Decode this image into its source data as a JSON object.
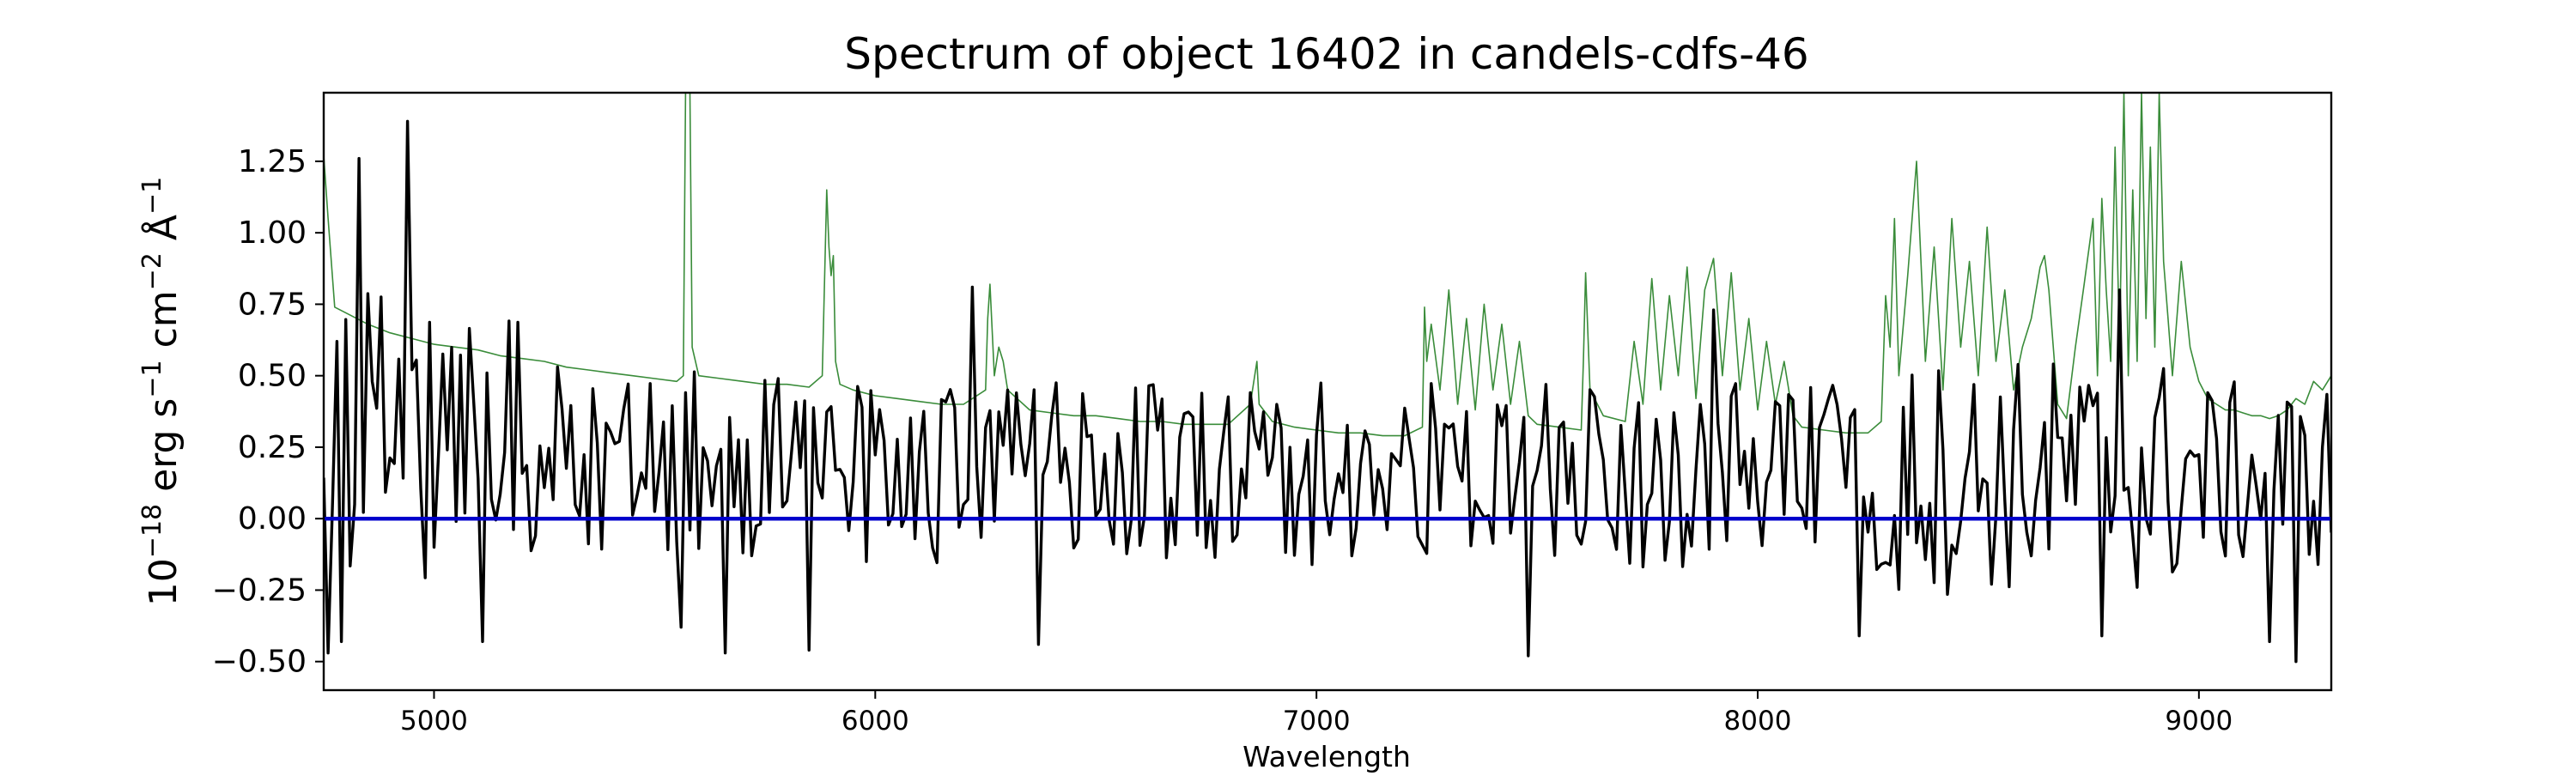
{
  "chart_data": {
    "type": "line",
    "title": "Spectrum of object 16402 in candels-cdfs-46",
    "xlabel": "Wavelength",
    "ylabel": "10^{-18} erg s^{-1} cm^{-2} Å^{-1}",
    "ylabel_parts": {
      "prefix": "10",
      "exp1": "−18",
      "unit1": " erg s",
      "exp2": "−1",
      "unit2": " cm",
      "exp3": "−2",
      "unit3": " Å",
      "exp4": "−1"
    },
    "xlim": [
      4750,
      9300
    ],
    "ylim": [
      -0.6,
      1.49
    ],
    "x_ticks": [
      5000,
      6000,
      7000,
      8000,
      9000
    ],
    "x_tick_labels": [
      "5000",
      "6000",
      "7000",
      "8000",
      "9000"
    ],
    "y_ticks": [
      -0.5,
      -0.25,
      0.0,
      0.25,
      0.5,
      0.75,
      1.0,
      1.25
    ],
    "y_tick_labels": [
      "−0.50",
      "−0.25",
      "0.00",
      "0.25",
      "0.50",
      "0.75",
      "1.00",
      "1.25"
    ],
    "grid": false,
    "series": [
      {
        "color": "#3a8c3a",
        "x": [
          4750,
          4760,
          4775,
          4800,
          4850,
          4900,
          4950,
          5000,
          5050,
          5100,
          5150,
          5200,
          5250,
          5300,
          5350,
          5400,
          5450,
          5500,
          5550,
          5565,
          5570,
          5575,
          5580,
          5585,
          5600,
          5650,
          5700,
          5750,
          5800,
          5850,
          5880,
          5890,
          5895,
          5900,
          5905,
          5910,
          5920,
          5950,
          6000,
          6050,
          6100,
          6150,
          6200,
          6250,
          6255,
          6260,
          6270,
          6280,
          6290,
          6300,
          6350,
          6400,
          6450,
          6500,
          6550,
          6600,
          6650,
          6700,
          6750,
          6800,
          6850,
          6860,
          6865,
          6870,
          6900,
          6950,
          7000,
          7050,
          7100,
          7150,
          7200,
          7240,
          7245,
          7250,
          7260,
          7280,
          7300,
          7320,
          7340,
          7360,
          7380,
          7400,
          7420,
          7440,
          7460,
          7480,
          7500,
          7550,
          7600,
          7605,
          7610,
          7620,
          7650,
          7700,
          7720,
          7740,
          7760,
          7780,
          7800,
          7820,
          7840,
          7860,
          7880,
          7900,
          7920,
          7940,
          7960,
          7980,
          8000,
          8020,
          8040,
          8060,
          8080,
          8100,
          8150,
          8200,
          8250,
          8280,
          8290,
          8300,
          8310,
          8320,
          8340,
          8360,
          8380,
          8400,
          8420,
          8440,
          8460,
          8480,
          8500,
          8520,
          8540,
          8560,
          8580,
          8600,
          8620,
          8640,
          8650,
          8660,
          8680,
          8700,
          8720,
          8740,
          8760,
          8770,
          8780,
          8790,
          8800,
          8810,
          8820,
          8830,
          8840,
          8850,
          8860,
          8870,
          8880,
          8890,
          8900,
          8910,
          8920,
          8930,
          8940,
          8960,
          8980,
          9000,
          9020,
          9040,
          9060,
          9080,
          9100,
          9120,
          9140,
          9160,
          9180,
          9200,
          9220,
          9240,
          9260,
          9280,
          9300
        ],
        "values": [
          1.27,
          1.05,
          0.74,
          0.72,
          0.68,
          0.65,
          0.63,
          0.61,
          0.6,
          0.59,
          0.57,
          0.56,
          0.55,
          0.53,
          0.52,
          0.51,
          0.5,
          0.49,
          0.48,
          0.5,
          1.49,
          1.49,
          1.49,
          0.6,
          0.5,
          0.49,
          0.48,
          0.47,
          0.47,
          0.46,
          0.5,
          1.15,
          0.95,
          0.85,
          0.92,
          0.55,
          0.47,
          0.45,
          0.43,
          0.42,
          0.41,
          0.4,
          0.4,
          0.45,
          0.7,
          0.82,
          0.5,
          0.6,
          0.55,
          0.45,
          0.38,
          0.37,
          0.36,
          0.36,
          0.35,
          0.34,
          0.34,
          0.33,
          0.33,
          0.33,
          0.4,
          0.5,
          0.55,
          0.4,
          0.34,
          0.32,
          0.31,
          0.3,
          0.3,
          0.29,
          0.29,
          0.32,
          0.74,
          0.55,
          0.68,
          0.45,
          0.8,
          0.4,
          0.7,
          0.38,
          0.75,
          0.45,
          0.68,
          0.4,
          0.62,
          0.36,
          0.33,
          0.32,
          0.31,
          0.55,
          0.86,
          0.45,
          0.36,
          0.34,
          0.62,
          0.4,
          0.84,
          0.45,
          0.78,
          0.5,
          0.88,
          0.42,
          0.8,
          0.91,
          0.5,
          0.86,
          0.45,
          0.7,
          0.38,
          0.62,
          0.4,
          0.55,
          0.36,
          0.32,
          0.31,
          0.3,
          0.3,
          0.34,
          0.78,
          0.6,
          1.05,
          0.5,
          0.85,
          1.25,
          0.55,
          0.95,
          0.45,
          1.05,
          0.6,
          0.9,
          0.5,
          1.02,
          0.55,
          0.8,
          0.45,
          0.6,
          0.7,
          0.88,
          0.92,
          0.8,
          0.4,
          0.35,
          0.6,
          0.82,
          1.05,
          0.5,
          1.12,
          0.8,
          0.55,
          1.3,
          0.6,
          1.49,
          0.5,
          1.15,
          0.55,
          1.49,
          0.7,
          1.3,
          0.6,
          1.49,
          0.9,
          0.7,
          0.5,
          0.9,
          0.6,
          0.48,
          0.42,
          0.4,
          0.38,
          0.38,
          0.37,
          0.36,
          0.36,
          0.35,
          0.36,
          0.38,
          0.42,
          0.4,
          0.48,
          0.45,
          0.5
        ]
      },
      {
        "color": "#0000cc",
        "x": [
          4750,
          9300
        ],
        "values": [
          0.0,
          0.0
        ]
      },
      {
        "color": "#000000",
        "x_start": 4750,
        "x_step": 10,
        "anchors": [
          {
            "x": 4760,
            "y": -0.47
          },
          {
            "x": 4780,
            "y": 0.62
          },
          {
            "x": 4790,
            "y": -0.43
          },
          {
            "x": 4830,
            "y": 1.26
          },
          {
            "x": 4940,
            "y": 1.39
          },
          {
            "x": 5110,
            "y": -0.43
          },
          {
            "x": 5560,
            "y": -0.38
          },
          {
            "x": 5660,
            "y": -0.47
          },
          {
            "x": 5850,
            "y": -0.46
          },
          {
            "x": 6220,
            "y": 0.81
          },
          {
            "x": 6370,
            "y": -0.44
          },
          {
            "x": 7480,
            "y": -0.48
          },
          {
            "x": 7900,
            "y": 0.73
          },
          {
            "x": 8230,
            "y": -0.41
          },
          {
            "x": 8780,
            "y": -0.41
          },
          {
            "x": 8820,
            "y": 0.8
          },
          {
            "x": 9160,
            "y": -0.43
          },
          {
            "x": 9220,
            "y": -0.5
          }
        ]
      }
    ]
  }
}
